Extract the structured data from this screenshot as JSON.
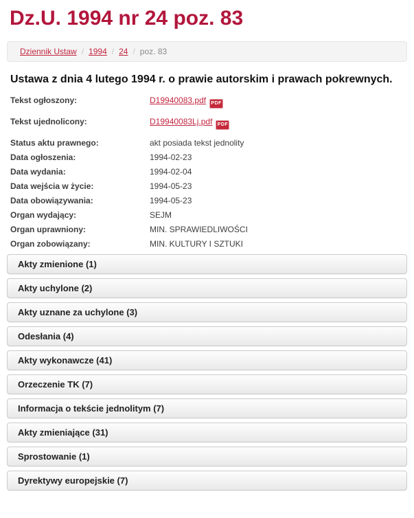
{
  "page_title": "Dz.U. 1994 nr 24 poz. 83",
  "breadcrumb": {
    "separator": "/",
    "links": [
      "Dziennik Ustaw",
      "1994",
      "24"
    ],
    "current": "poz. 83"
  },
  "act_title": "Ustawa z dnia 4 lutego 1994 r. o prawie autorskim i prawach pokrewnych.",
  "icons": {
    "pdf_label": "PDF"
  },
  "details": {
    "file_rows": [
      {
        "label": "Tekst ogłoszony:",
        "link": "D19940083.pdf"
      },
      {
        "label": "Tekst ujednolicony:",
        "link": "D19940083Lj.pdf"
      }
    ],
    "rows": [
      {
        "label": "Status aktu prawnego:",
        "value": "akt posiada tekst jednolity"
      },
      {
        "label": "Data ogłoszenia:",
        "value": "1994-02-23"
      },
      {
        "label": "Data wydania:",
        "value": "1994-02-04"
      },
      {
        "label": "Data wejścia w życie:",
        "value": "1994-05-23"
      },
      {
        "label": "Data obowiązywania:",
        "value": "1994-05-23"
      },
      {
        "label": "Organ wydający:",
        "value": "SEJM"
      },
      {
        "label": "Organ uprawniony:",
        "value": "MIN. SPRAWIEDLIWOŚCI"
      },
      {
        "label": "Organ zobowiązany:",
        "value": "MIN. KULTURY I SZTUKI"
      }
    ]
  },
  "accordion": [
    {
      "label": "Akty zmienione (1)"
    },
    {
      "label": "Akty uchylone (2)"
    },
    {
      "label": "Akty uznane za uchylone (3)"
    },
    {
      "label": "Odesłania (4)"
    },
    {
      "label": "Akty wykonawcze (41)"
    },
    {
      "label": "Orzeczenie TK (7)"
    },
    {
      "label": "Informacja o tekście jednolitym (7)"
    },
    {
      "label": "Akty zmieniające (31)"
    },
    {
      "label": "Sprostowanie (1)"
    },
    {
      "label": "Dyrektywy europejskie (7)"
    }
  ],
  "colors": {
    "heading": "#b2163c",
    "link": "#c22740",
    "bar_border": "#cbcbcb"
  }
}
